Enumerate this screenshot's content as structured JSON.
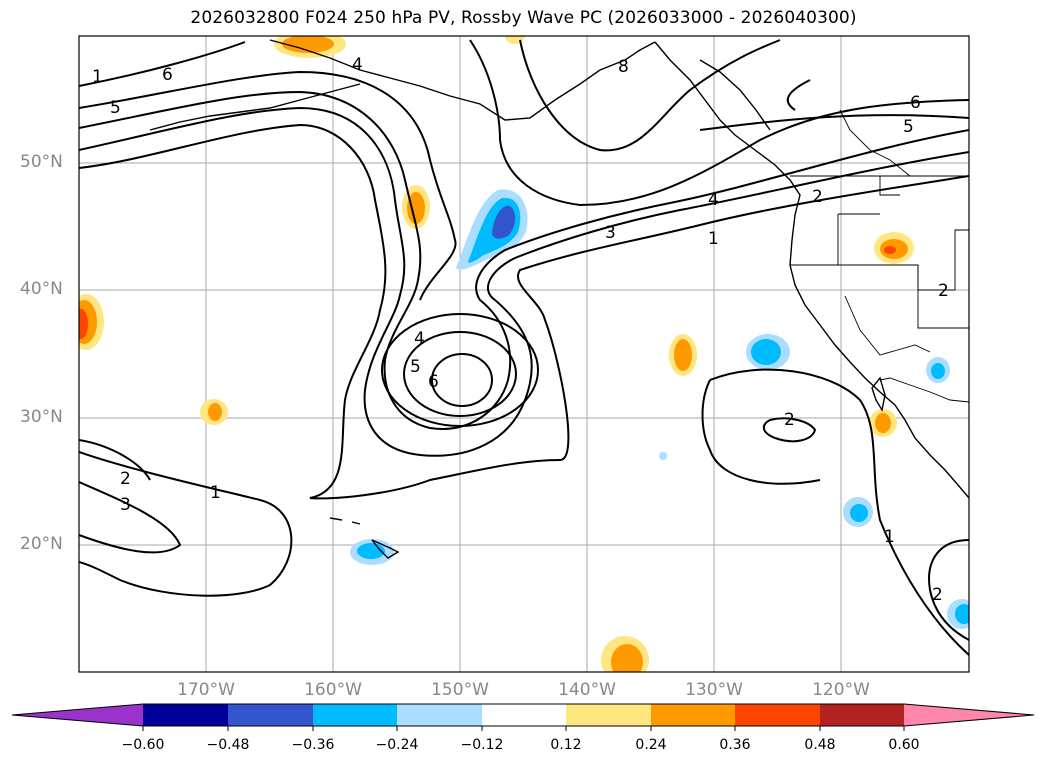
{
  "title": "2026032800 F024 250 hPa PV, Rossby Wave PC (2026033000 - 2026040300)",
  "lat_labels": [
    "50°N",
    "40°N",
    "30°N",
    "20°N"
  ],
  "lon_labels": [
    "170°W",
    "160°W",
    "150°W",
    "140°W",
    "130°W",
    "120°W"
  ],
  "contour_labels": [
    "1",
    "2",
    "3",
    "4",
    "5",
    "6",
    "8",
    "1",
    "2",
    "3",
    "4",
    "5",
    "6",
    "1",
    "2",
    "2",
    "1",
    "2",
    "4",
    "5",
    "6"
  ],
  "colorbar": {
    "tick_labels": [
      "−0.60",
      "−0.48",
      "−0.36",
      "−0.24",
      "−0.12",
      "0.12",
      "0.24",
      "0.36",
      "0.48",
      "0.60"
    ],
    "colors": [
      "#9933cc",
      "#000099",
      "#3355cc",
      "#00bbff",
      "#aaddff",
      "#ffffff",
      "#ffe680",
      "#ff9900",
      "#ff4400",
      "#b22222",
      "#ff88aa"
    ]
  },
  "colors": {
    "grid": "#aaaaaa",
    "axis_label": "#888888",
    "contour": "#000000"
  }
}
